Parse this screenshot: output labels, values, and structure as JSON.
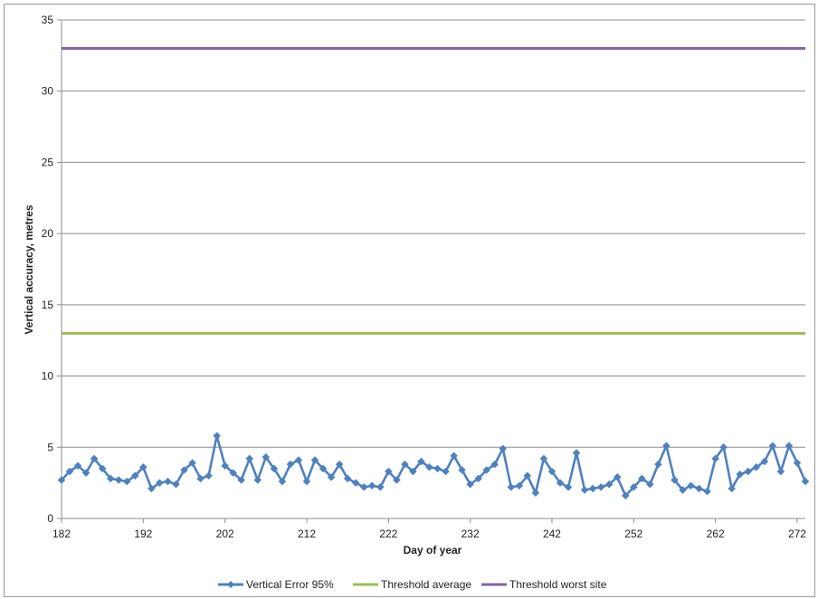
{
  "chart_data": {
    "type": "line",
    "title": "",
    "xlabel": "Day of year",
    "ylabel": "Vertical accuracy, metres",
    "xlim": [
      182,
      273
    ],
    "ylim": [
      0,
      35
    ],
    "x_ticks": [
      "182",
      "192",
      "202",
      "212",
      "222",
      "232",
      "242",
      "252",
      "262",
      "272"
    ],
    "y_ticks": [
      "0",
      "5",
      "10",
      "15",
      "20",
      "25",
      "30",
      "35"
    ],
    "grid": "horizontal",
    "legend_position": "bottom",
    "series": [
      {
        "name": "Vertical Error 95%",
        "color": "#4f81bd",
        "marker": "diamond",
        "x_start": 182,
        "x_step": 1,
        "values": [
          2.7,
          3.3,
          3.7,
          3.2,
          4.2,
          3.5,
          2.8,
          2.7,
          2.6,
          3.0,
          3.6,
          2.1,
          2.5,
          2.6,
          2.4,
          3.4,
          3.9,
          2.8,
          3.0,
          5.8,
          3.7,
          3.2,
          2.7,
          4.2,
          2.7,
          4.3,
          3.5,
          2.6,
          3.8,
          4.1,
          2.6,
          4.1,
          3.5,
          2.9,
          3.8,
          2.8,
          2.5,
          2.2,
          2.3,
          2.2,
          3.3,
          2.7,
          3.8,
          3.3,
          4.0,
          3.6,
          3.5,
          3.3,
          4.4,
          3.4,
          2.4,
          2.8,
          3.4,
          3.8,
          4.9,
          2.2,
          2.3,
          3.0,
          1.8,
          4.2,
          3.3,
          2.5,
          2.2,
          4.6,
          2.0,
          2.1,
          2.2,
          2.4,
          2.9,
          1.6,
          2.2,
          2.8,
          2.4,
          3.8,
          5.1,
          2.7,
          2.0,
          2.3,
          2.1,
          1.9,
          4.2,
          5.0,
          2.1,
          3.1,
          3.3,
          3.6,
          4.0,
          5.1,
          3.3,
          5.1,
          3.9,
          2.6
        ]
      },
      {
        "name": "Threshold average",
        "color": "#9bbb59",
        "constant": 13
      },
      {
        "name": "Threshold worst site",
        "color": "#8064a2",
        "constant": 33
      }
    ]
  }
}
